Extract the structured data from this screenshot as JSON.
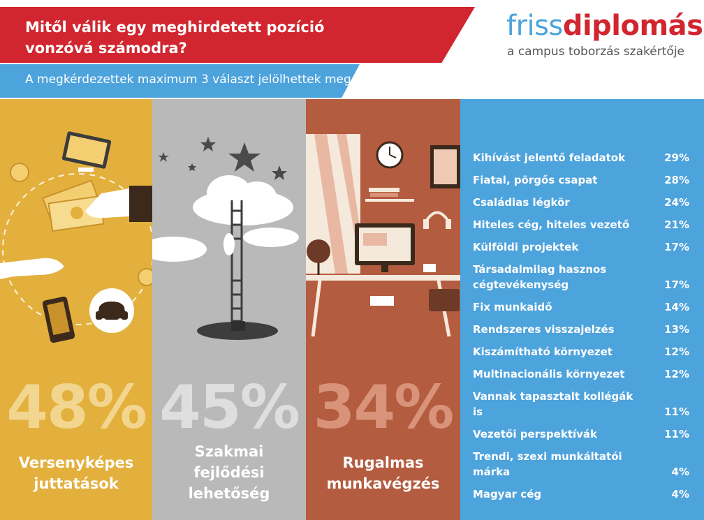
{
  "header": {
    "title_line1": "Mitől válik egy meghirdetett pozíció",
    "title_line2": "vonzóvá számodra?",
    "subtitle": "A megkérdezettek maximum 3 választ jelölhettek meg",
    "logo_part1": "friss",
    "logo_part2": "diplomás",
    "tagline": "a campus toborzás szakértője"
  },
  "colors": {
    "red": "#d1262f",
    "blue": "#4da3dc",
    "yellow": "#e3b03d",
    "gray": "#b9b9b9",
    "brown": "#b45c3f"
  },
  "chart_data": [
    {
      "type": "table",
      "categories": [
        "Versenyképes juttatások",
        "Szakmai fejlődési lehetőség",
        "Rugalmas munkavégzés"
      ],
      "values": [
        48,
        45,
        34
      ],
      "value_labels": [
        "48%",
        "45%",
        "34%"
      ]
    },
    {
      "type": "table",
      "categories": [
        "Kihívást jelentő feladatok",
        "Fiatal, pörgős csapat",
        "Családias légkör",
        "Hiteles cég, hiteles vezető",
        "Külföldi projektek",
        "Társadalmilag hasznos cégtevékenység",
        "Fix munkaidő",
        "Rendszeres visszajelzés",
        "Kiszámítható környezet",
        "Multinacionális környezet",
        "Vannak tapasztalt kollégák is",
        "Vezetői perspektívák",
        "Trendi, szexi munkáltatói márka",
        "Magyar cég"
      ],
      "values": [
        29,
        28,
        24,
        21,
        17,
        17,
        14,
        13,
        12,
        12,
        11,
        11,
        4,
        4
      ],
      "value_labels": [
        "29%",
        "28%",
        "24%",
        "21%",
        "17%",
        "17%",
        "14%",
        "13%",
        "12%",
        "12%",
        "11%",
        "11%",
        "4%",
        "4%"
      ]
    }
  ],
  "panels": [
    {
      "pct": "48%",
      "label": [
        "Versenyképes",
        "juttatások"
      ]
    },
    {
      "pct": "45%",
      "label": [
        "Szakmai",
        "fejlődési",
        "lehetőség"
      ]
    },
    {
      "pct": "34%",
      "label": [
        "Rugalmas",
        "munkavégzés"
      ]
    }
  ],
  "list": [
    {
      "name": "Kihívást jelentő feladatok",
      "pct": "29%"
    },
    {
      "name": "Fiatal, pörgős csapat",
      "pct": "28%"
    },
    {
      "name": "Családias légkör",
      "pct": "24%"
    },
    {
      "name": "Hiteles cég, hiteles vezető",
      "pct": "21%"
    },
    {
      "name": "Külföldi projektek",
      "pct": "17%"
    },
    {
      "name": "Társadalmilag hasznos cégtevékenység",
      "pct": "17%"
    },
    {
      "name": "Fix munkaidő",
      "pct": "14%"
    },
    {
      "name": "Rendszeres visszajelzés",
      "pct": "13%"
    },
    {
      "name": "Kiszámítható környezet",
      "pct": "12%"
    },
    {
      "name": "Multinacionális környezet",
      "pct": "12%"
    },
    {
      "name": "Vannak tapasztalt kollégák is",
      "pct": "11%"
    },
    {
      "name": "Vezetői perspektívák",
      "pct": "11%"
    },
    {
      "name": "Trendi, szexi munkáltatói márka",
      "pct": "4%"
    },
    {
      "name": "Magyar cég",
      "pct": "4%"
    }
  ]
}
